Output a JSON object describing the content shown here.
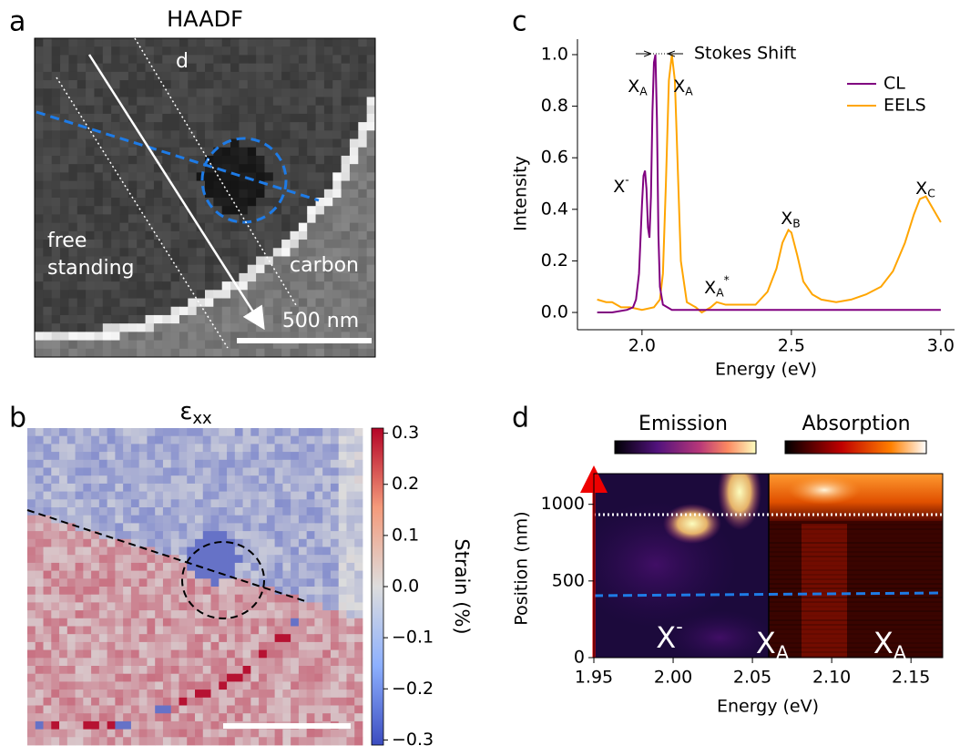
{
  "chart_data": [
    {
      "panel": "a",
      "type": "image",
      "title": "HAADF",
      "labels": [
        "d",
        "free",
        "standing",
        "carbon"
      ],
      "scale_bar": "500 nm"
    },
    {
      "panel": "b",
      "type": "heatmap",
      "title": {
        "text": "ε",
        "sub": "xx"
      },
      "colorbar_label": "Strain (%)",
      "clim": [
        -0.31,
        0.31
      ],
      "cticks": [
        0.3,
        0.2,
        0.1,
        {
          "value": 0,
          "label": "0.0"
        },
        {
          "value": -0.1,
          "label": "−0.1"
        },
        {
          "value": -0.2,
          "label": "−0.2"
        },
        {
          "value": -0.3,
          "label": "−0.3"
        }
      ]
    },
    {
      "panel": "c",
      "type": "line",
      "xlabel": "Energy (eV)",
      "ylabel": "Intensity",
      "xlim": [
        1.784,
        3.046
      ],
      "ylim": [
        -0.067,
        1.06
      ],
      "xticks": [
        {
          "value": 2,
          "label": "2.0"
        },
        2.5,
        {
          "value": 3,
          "label": "3.0"
        }
      ],
      "yticks": [
        {
          "value": 0,
          "label": "0.0"
        },
        0.2,
        0.4,
        0.6,
        0.8,
        {
          "value": 1,
          "label": "1.0"
        }
      ],
      "legend": "upper right",
      "stokes_label": "Stokes Shift",
      "series": [
        {
          "name": "CL",
          "color": "#800080",
          "x": [
            1.85,
            1.9,
            1.95,
            1.97,
            1.98,
            1.99,
            2.0,
            2.005,
            2.01,
            2.015,
            2.02,
            2.025,
            2.03,
            2.035,
            2.04,
            2.045,
            2.05,
            2.055,
            2.06,
            2.07,
            2.1,
            2.2,
            2.4,
            2.6,
            2.8,
            3.0
          ],
          "values": [
            0.0,
            0.0,
            0.01,
            0.02,
            0.05,
            0.15,
            0.42,
            0.53,
            0.55,
            0.48,
            0.33,
            0.29,
            0.45,
            0.78,
            0.97,
            1.0,
            0.75,
            0.3,
            0.1,
            0.03,
            0.01,
            0.01,
            0.01,
            0.01,
            0.01,
            0.01
          ]
        },
        {
          "name": "EELS",
          "color": "#ffa500",
          "x": [
            1.85,
            1.88,
            1.9,
            1.93,
            1.96,
            2.0,
            2.04,
            2.06,
            2.07,
            2.08,
            2.09,
            2.1,
            2.11,
            2.12,
            2.13,
            2.15,
            2.18,
            2.2,
            2.23,
            2.25,
            2.28,
            2.32,
            2.38,
            2.42,
            2.45,
            2.47,
            2.49,
            2.5,
            2.52,
            2.54,
            2.57,
            2.6,
            2.65,
            2.7,
            2.75,
            2.8,
            2.84,
            2.88,
            2.91,
            2.93,
            2.95,
            2.97,
            3.0
          ],
          "values": [
            0.05,
            0.04,
            0.04,
            0.02,
            0.02,
            0.01,
            0.02,
            0.05,
            0.15,
            0.5,
            0.9,
            1.0,
            0.9,
            0.55,
            0.2,
            0.04,
            0.02,
            0.0,
            0.02,
            0.04,
            0.03,
            0.03,
            0.03,
            0.08,
            0.17,
            0.27,
            0.32,
            0.31,
            0.22,
            0.12,
            0.07,
            0.05,
            0.04,
            0.05,
            0.07,
            0.1,
            0.16,
            0.27,
            0.38,
            0.44,
            0.45,
            0.41,
            0.35
          ]
        }
      ],
      "annotations": [
        {
          "text": "X",
          "sup": "-"
        },
        {
          "text": "X",
          "sub": "A"
        },
        {
          "text": "X",
          "sub": "A"
        },
        {
          "text": "X",
          "sub": "A",
          "sup": "*"
        },
        {
          "text": "X",
          "sub": "B"
        },
        {
          "text": "X",
          "sub": "C"
        }
      ]
    },
    {
      "panel": "d",
      "type": "heatmap",
      "xlabel": "Energy (eV)",
      "ylabel": "Position (nm)",
      "xlim": [
        1.95,
        2.17
      ],
      "ylim": [
        0,
        1200
      ],
      "xticks": [
        1.95,
        {
          "value": 2,
          "label": "2.00"
        },
        2.05,
        {
          "value": 2.1,
          "label": "2.10"
        },
        2.15
      ],
      "yticks": [
        0,
        500,
        1000
      ],
      "colorbars": [
        "Emission",
        "Absorption"
      ],
      "annotations": [
        {
          "text": "X",
          "sup": "-"
        },
        {
          "text": "X",
          "sub": "A"
        },
        {
          "text": "X",
          "sub": "A"
        }
      ]
    }
  ]
}
